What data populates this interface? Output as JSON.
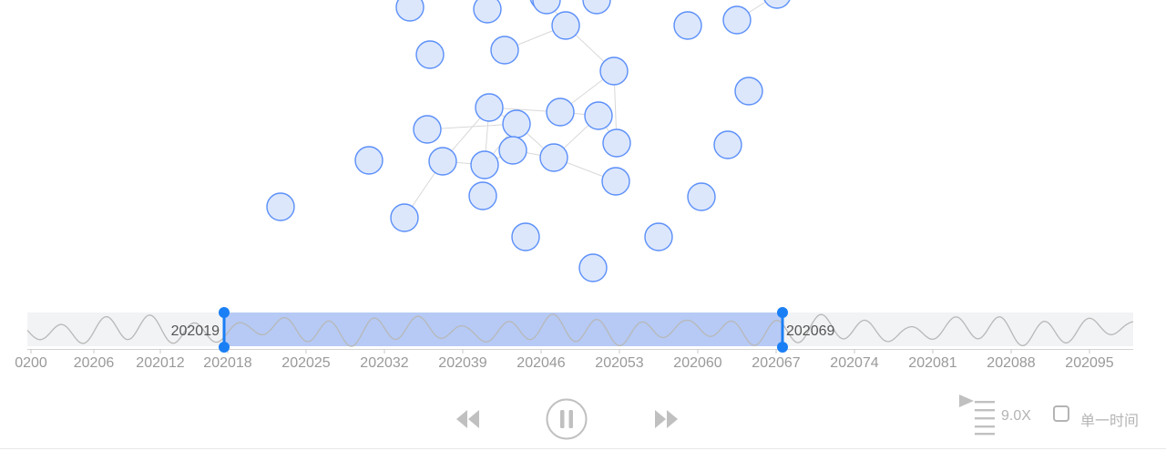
{
  "colors": {
    "node_fill": "#dce7fc",
    "node_stroke": "#5b8ff9",
    "edge": "#d8d8d8",
    "selection": "#b6caf5",
    "handle": "#1a7ff5",
    "track": "#f2f3f5",
    "wave": "#b8b8b8",
    "control": "#c0c0c0"
  },
  "graph": {
    "nodes": [
      {
        "id": "n1"
      },
      {
        "id": "n2"
      },
      {
        "id": "n3"
      },
      {
        "id": "n4"
      },
      {
        "id": "n5"
      },
      {
        "id": "n6"
      },
      {
        "id": "n7"
      },
      {
        "id": "n8"
      },
      {
        "id": "n9"
      },
      {
        "id": "n10"
      },
      {
        "id": "n11"
      },
      {
        "id": "n12"
      },
      {
        "id": "n13"
      },
      {
        "id": "n14"
      },
      {
        "id": "n15"
      },
      {
        "id": "n16"
      },
      {
        "id": "n17"
      },
      {
        "id": "n18"
      },
      {
        "id": "n19"
      },
      {
        "id": "n20"
      },
      {
        "id": "n21"
      },
      {
        "id": "n22"
      },
      {
        "id": "n23"
      },
      {
        "id": "n24"
      },
      {
        "id": "n25"
      },
      {
        "id": "n26"
      },
      {
        "id": "n27"
      },
      {
        "id": "n28"
      },
      {
        "id": "n29"
      },
      {
        "id": "n30"
      },
      {
        "id": "n31"
      },
      {
        "id": "n32"
      },
      {
        "id": "n33"
      }
    ],
    "edges": [
      {
        "source": "n7",
        "target": "n8"
      },
      {
        "source": "n7",
        "target": "n3"
      },
      {
        "source": "n8",
        "target": "n11"
      },
      {
        "source": "n11",
        "target": "n12"
      },
      {
        "source": "n11",
        "target": "n16"
      },
      {
        "source": "n12",
        "target": "n14"
      },
      {
        "source": "n12",
        "target": "n13"
      },
      {
        "source": "n12",
        "target": "n22"
      },
      {
        "source": "n13",
        "target": "n21"
      },
      {
        "source": "n14",
        "target": "n21"
      },
      {
        "source": "n14",
        "target": "n20"
      },
      {
        "source": "n20",
        "target": "n21"
      },
      {
        "source": "n20",
        "target": "n19"
      },
      {
        "source": "n21",
        "target": "n22"
      },
      {
        "source": "n12",
        "target": "n19"
      },
      {
        "source": "n19",
        "target": "n26"
      },
      {
        "source": "n22",
        "target": "n18"
      },
      {
        "source": "n15",
        "target": "n18"
      },
      {
        "source": "n18",
        "target": "n20"
      },
      {
        "source": "n17",
        "target": "n18"
      },
      {
        "source": "n18",
        "target": "n27"
      },
      {
        "source": "n14",
        "target": "n19"
      },
      {
        "source": "n12",
        "target": "n20"
      }
    ]
  },
  "timebar": {
    "range_start_label": "202019",
    "range_end_label": "202069",
    "ticks": [
      "0200",
      "20206",
      "202012",
      "202018",
      "202025",
      "202032",
      "202039",
      "202046",
      "202053",
      "202060",
      "202067",
      "202074",
      "202081",
      "202088",
      "202095"
    ]
  },
  "controls": {
    "prev_icon": "rewind-icon",
    "play_icon": "pause-icon",
    "next_icon": "fast-forward-icon",
    "speed_icon": "speed-play-list-icon",
    "speed": "9.0X",
    "single_time_label": "单一时间",
    "single_time_checked": false
  }
}
